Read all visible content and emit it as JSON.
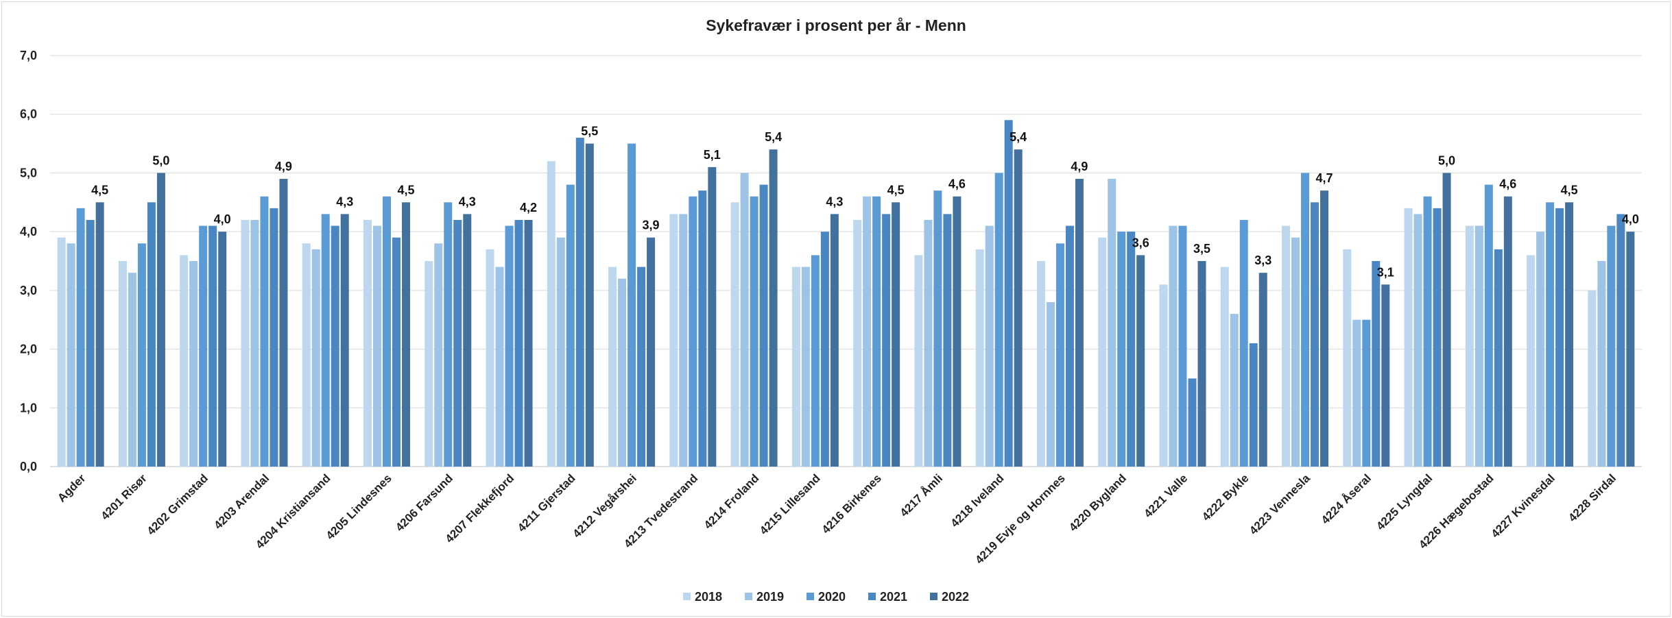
{
  "chart_data": {
    "type": "bar",
    "title": "Sykefravær i prosent per år - Menn",
    "xlabel": "",
    "ylabel": "",
    "ylim": [
      0,
      7
    ],
    "yticks": [
      "0,0",
      "1,0",
      "2,0",
      "3,0",
      "4,0",
      "5,0",
      "6,0",
      "7,0"
    ],
    "grid": true,
    "legend_position": "bottom",
    "colors": [
      "#bdd7ee",
      "#9dc3e6",
      "#5b9bd5",
      "#4a86c1",
      "#41719c"
    ],
    "categories": [
      "Agder",
      "4201 Risør",
      "4202 Grimstad",
      "4203 Arendal",
      "4204 Kristiansand",
      "4205 Lindesnes",
      "4206 Farsund",
      "4207 Flekkefjord",
      "4211 Gjerstad",
      "4212 Vegårshei",
      "4213 Tvedestrand",
      "4214 Froland",
      "4215 Lillesand",
      "4216 Birkenes",
      "4217 Åmli",
      "4218 Iveland",
      "4219 Evje og Hornnes",
      "4220 Bygland",
      "4221 Valle",
      "4222 Bykle",
      "4223 Vennesla",
      "4224 Åseral",
      "4225 Lyngdal",
      "4226 Hægebostad",
      "4227 Kvinesdal",
      "4228 Sirdal"
    ],
    "series": [
      {
        "name": "2018",
        "values": [
          3.9,
          3.5,
          3.6,
          4.2,
          3.8,
          4.2,
          3.5,
          3.7,
          5.2,
          3.4,
          4.3,
          4.5,
          3.4,
          4.2,
          3.6,
          3.7,
          3.5,
          3.9,
          3.1,
          3.4,
          4.1,
          3.7,
          4.4,
          4.1,
          3.6,
          3.0
        ]
      },
      {
        "name": "2019",
        "values": [
          3.8,
          3.3,
          3.5,
          4.2,
          3.7,
          4.1,
          3.8,
          3.4,
          3.9,
          3.2,
          4.3,
          5.0,
          3.4,
          4.6,
          4.2,
          4.1,
          2.8,
          4.9,
          4.1,
          2.6,
          3.9,
          2.5,
          4.3,
          4.1,
          4.0,
          3.5
        ]
      },
      {
        "name": "2020",
        "values": [
          4.4,
          3.8,
          4.1,
          4.6,
          4.3,
          4.6,
          4.5,
          4.1,
          4.8,
          5.5,
          4.6,
          4.6,
          3.6,
          4.6,
          4.7,
          5.0,
          3.8,
          4.0,
          4.1,
          4.2,
          5.0,
          2.5,
          4.6,
          4.8,
          4.5,
          4.1
        ]
      },
      {
        "name": "2021",
        "values": [
          4.2,
          4.5,
          4.1,
          4.4,
          4.1,
          3.9,
          4.2,
          4.2,
          5.6,
          3.4,
          4.7,
          4.8,
          4.0,
          4.3,
          4.3,
          5.9,
          4.1,
          4.0,
          1.5,
          2.1,
          4.5,
          3.5,
          4.4,
          3.7,
          4.4,
          4.3
        ]
      },
      {
        "name": "2022",
        "values": [
          4.5,
          5.0,
          4.0,
          4.9,
          4.3,
          4.5,
          4.3,
          4.2,
          5.5,
          3.9,
          5.1,
          5.4,
          4.3,
          4.5,
          4.6,
          5.4,
          4.9,
          3.6,
          3.5,
          3.3,
          4.7,
          3.1,
          5.0,
          4.6,
          4.5,
          4.0
        ]
      }
    ],
    "data_labels": [
      "4,5",
      "5,0",
      "4,0",
      "4,9",
      "4,3",
      "4,5",
      "4,3",
      "4,2",
      "5,5",
      "3,9",
      "5,1",
      "5,4",
      "4,3",
      "4,5",
      "4,6",
      "5,4",
      "4,9",
      "3,6",
      "3,5",
      "3,3",
      "4,7",
      "3,1",
      "5,0",
      "4,6",
      "4,5",
      "4,0"
    ]
  }
}
